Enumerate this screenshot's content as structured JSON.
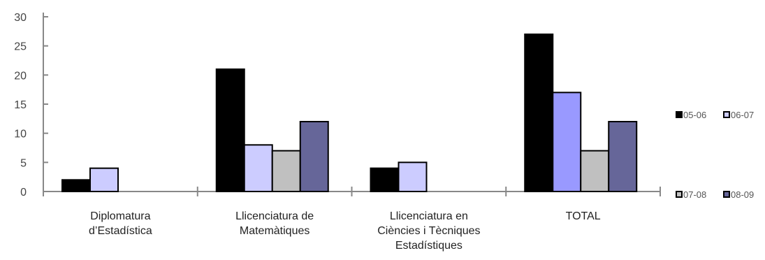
{
  "chart_data": {
    "type": "bar",
    "title": "",
    "xlabel": "",
    "ylabel": "",
    "ylim": [
      0,
      30
    ],
    "yticks": [
      0,
      5,
      10,
      15,
      20,
      25,
      30
    ],
    "grid": false,
    "legend_position": "right",
    "categories": [
      [
        "Diplomatura",
        "d’Estadística"
      ],
      [
        "Llicenciatura de",
        "Matemàtiques"
      ],
      [
        "Llicenciatura en",
        "Ciències i Tècniques",
        "Estadístiques"
      ],
      [
        "TOTAL"
      ]
    ],
    "series": [
      {
        "name": "05-06",
        "color": "#000000",
        "values": [
          2,
          21,
          4,
          27
        ]
      },
      {
        "name": "06-07",
        "color_list": [
          "#CCCCFF",
          "#CCCCFF",
          "#CCCCFF",
          "#9999FF"
        ],
        "color": "#CCCCFF",
        "values": [
          4,
          8,
          5,
          17
        ]
      },
      {
        "name": "07-08",
        "color": "#C0C0C0",
        "values": [
          null,
          7,
          null,
          7
        ]
      },
      {
        "name": "08-09",
        "color": "#666699",
        "values": [
          null,
          12,
          null,
          12
        ]
      }
    ]
  }
}
